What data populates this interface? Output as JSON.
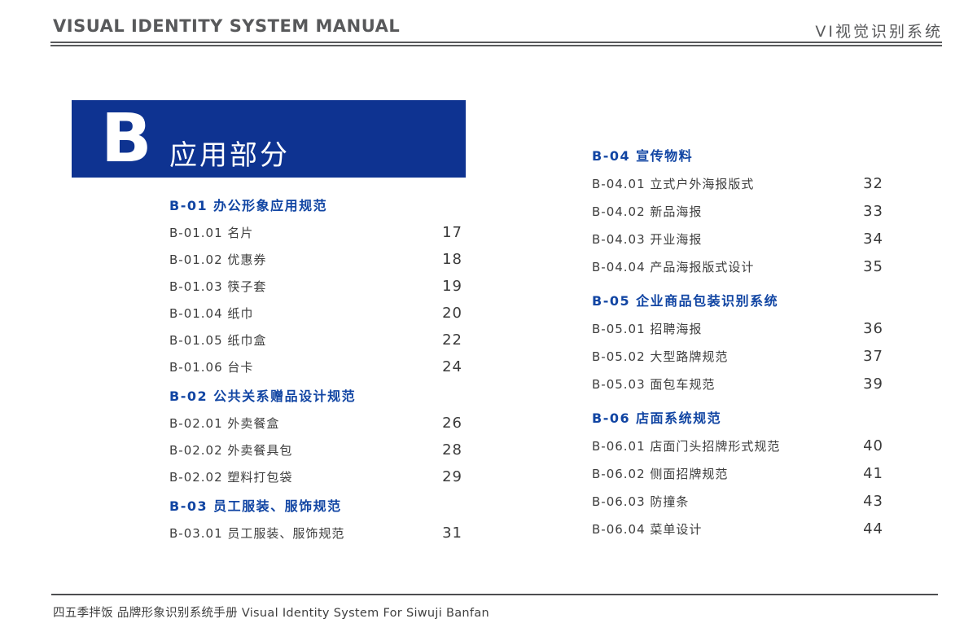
{
  "header": {
    "title_en": "VISUAL IDENTITY SYSTEM MANUAL",
    "title_zh": "VI视觉识别系统"
  },
  "banner": {
    "letter": "B",
    "title": "应用部分"
  },
  "toc": {
    "left_column": [
      {
        "heading": "B-01 办公形象应用规范",
        "items": [
          {
            "label": "B-01.01 名片",
            "page": "17"
          },
          {
            "label": "B-01.02 优惠券",
            "page": "18"
          },
          {
            "label": "B-01.03 筷子套",
            "page": "19"
          },
          {
            "label": "B-01.04 纸巾",
            "page": "20"
          },
          {
            "label": "B-01.05 纸巾盒",
            "page": "22"
          },
          {
            "label": "B-01.06 台卡",
            "page": "24"
          }
        ]
      },
      {
        "heading": "B-02 公共关系赠品设计规范",
        "items": [
          {
            "label": "B-02.01 外卖餐盒",
            "page": "26"
          },
          {
            "label": "B-02.02 外卖餐具包",
            "page": "28"
          },
          {
            "label": "B-02.02 塑料打包袋",
            "page": "29"
          }
        ]
      },
      {
        "heading": "B-03 员工服装、服饰规范",
        "items": [
          {
            "label": "B-03.01 员工服装、服饰规范",
            "page": "31"
          }
        ]
      }
    ],
    "right_column": [
      {
        "heading": "B-04 宣传物料",
        "items": [
          {
            "label": "B-04.01 立式户外海报版式",
            "page": "32"
          },
          {
            "label": "B-04.02 新品海报",
            "page": "33"
          },
          {
            "label": "B-04.03 开业海报",
            "page": "34"
          },
          {
            "label": "B-04.04 产品海报版式设计",
            "page": "35"
          }
        ]
      },
      {
        "heading": "B-05 企业商品包装识别系统",
        "items": [
          {
            "label": "B-05.01 招聘海报",
            "page": "36"
          },
          {
            "label": "B-05.02 大型路牌规范",
            "page": "37"
          },
          {
            "label": "B-05.03 面包车规范",
            "page": "39"
          }
        ]
      },
      {
        "heading": "B-06 店面系统规范",
        "items": [
          {
            "label": "B-06.01 店面门头招牌形式规范",
            "page": "40"
          },
          {
            "label": "B-06.02 侧面招牌规范",
            "page": "41"
          },
          {
            "label": "B-06.03 防撞条",
            "page": "43"
          },
          {
            "label": "B-06.04 菜单设计",
            "page": "44"
          }
        ]
      }
    ]
  },
  "footer": {
    "text": "四五季拌饭 品牌形象识别系统手册  Visual Identity System For Siwuji Banfan"
  },
  "colors": {
    "banner_blue": "#0e3391",
    "heading_blue": "#1145a3",
    "body_text_gray": "#3e3e3e",
    "header_gray": "#58595b",
    "rule_gray": "#4d4e50"
  }
}
